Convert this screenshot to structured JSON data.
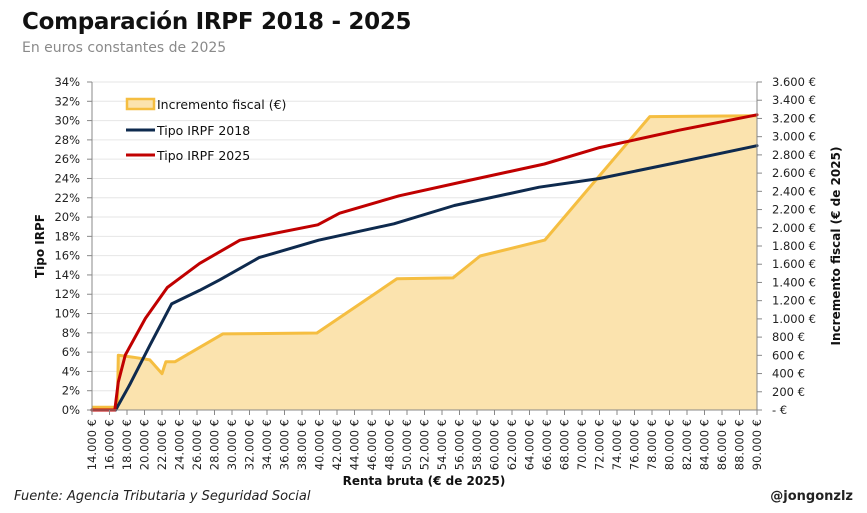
{
  "header": {
    "title": "Comparación IRPF 2018 - 2025",
    "subtitle": "En euros constantes de 2025"
  },
  "footer": {
    "source": "Fuente: Agencia Tributaria y Seguridad Social",
    "handle": "@jongonzlz"
  },
  "chart_data": {
    "type": "line",
    "title": "Comparación IRPF 2018 - 2025",
    "subtitle": "En euros constantes de 2025",
    "xlabel": "Renta bruta (€ de 2025)",
    "ylabel": "Tipo IRPF",
    "y2label": "Incremento fiscal (€ de 2025)",
    "xlim": [
      14000,
      90000
    ],
    "ylim": [
      0,
      34
    ],
    "y2lim": [
      0,
      3600
    ],
    "grid": true,
    "legend_position": "top-left",
    "x_ticks": [
      "14.000 €",
      "16.000 €",
      "18.000 €",
      "20.000 €",
      "22.000 €",
      "24.000 €",
      "26.000 €",
      "28.000 €",
      "30.000 €",
      "32.000 €",
      "34.000 €",
      "36.000 €",
      "38.000 €",
      "40.000 €",
      "42.000 €",
      "44.000 €",
      "46.000 €",
      "48.000 €",
      "50.000 €",
      "52.000 €",
      "54.000 €",
      "56.000 €",
      "58.000 €",
      "60.000 €",
      "62.000 €",
      "64.000 €",
      "66.000 €",
      "68.000 €",
      "70.000 €",
      "72.000 €",
      "74.000 €",
      "76.000 €",
      "78.000 €",
      "80.000 €",
      "82.000 €",
      "84.000 €",
      "86.000 €",
      "88.000 €",
      "90.000 €"
    ],
    "y_ticks": [
      "0%",
      "2%",
      "4%",
      "6%",
      "8%",
      "10%",
      "12%",
      "14%",
      "16%",
      "18%",
      "20%",
      "22%",
      "24%",
      "26%",
      "28%",
      "30%",
      "32%",
      "34%"
    ],
    "y2_ticks": [
      "-   €",
      "200 €",
      "400 €",
      "600 €",
      "800 €",
      "1.000 €",
      "1.200 €",
      "1.400 €",
      "1.600 €",
      "1.800 €",
      "2.000 €",
      "2.200 €",
      "2.400 €",
      "2.600 €",
      "2.800 €",
      "3.000 €",
      "3.200 €",
      "3.400 €",
      "3.600 €"
    ],
    "series": [
      {
        "name": "Incremento fiscal (€)",
        "type": "area",
        "axis": "right",
        "color": "#F5BE41",
        "fill": "#FBE3AE",
        "x": [
          14000,
          16900,
          17000,
          18700,
          20600,
          22000,
          22450,
          23500,
          28950,
          39700,
          48850,
          55250,
          58350,
          65750,
          77750,
          90000
        ],
        "values": [
          30,
          30,
          600,
          580,
          550,
          400,
          530,
          530,
          835,
          845,
          1440,
          1450,
          1690,
          1865,
          3220,
          3230
        ]
      },
      {
        "name": "Tipo IRPF 2018",
        "type": "line",
        "axis": "left",
        "color": "#0E2A4E",
        "x": [
          14000,
          16700,
          18300,
          20600,
          23100,
          26300,
          28600,
          33100,
          39900,
          48500,
          55400,
          65100,
          72000,
          80600,
          90000
        ],
        "values": [
          0,
          0,
          2.6,
          6.7,
          11.0,
          12.4,
          13.5,
          15.8,
          17.6,
          19.3,
          21.2,
          23.1,
          24.0,
          25.6,
          27.4
        ]
      },
      {
        "name": "Tipo IRPF 2025",
        "type": "line",
        "axis": "left",
        "color": "#C00000",
        "x": [
          14000,
          16600,
          17000,
          17800,
          20100,
          22600,
          23500,
          26300,
          30900,
          39800,
          42300,
          49100,
          57100,
          65700,
          72000,
          81100,
          90000
        ],
        "values": [
          0,
          0,
          2.9,
          5.7,
          9.5,
          12.7,
          13.3,
          15.2,
          17.6,
          19.2,
          20.4,
          22.2,
          23.8,
          25.5,
          27.2,
          29.0,
          30.6
        ]
      }
    ]
  }
}
